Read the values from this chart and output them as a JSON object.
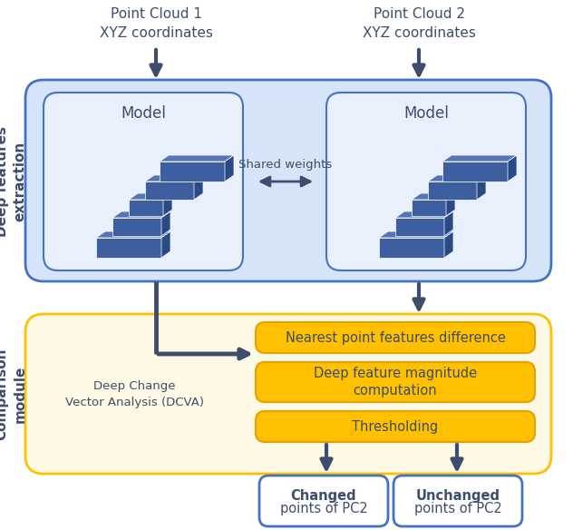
{
  "bg_color": "#ffffff",
  "top_label1": "Point Cloud 1\nXYZ coordinates",
  "top_label2": "Point Cloud 2\nXYZ coordinates",
  "blue_box_fill": "#d6e4f7",
  "blue_box_border": "#4472c4",
  "model_box_fill": "#e8f0fb",
  "model_box_border": "#4472c4",
  "yellow_box_fill": "#fef9e4",
  "yellow_box_border": "#ffc000",
  "orange_btn_fill": "#ffc000",
  "orange_btn_border": "#e6a000",
  "output_box_fill": "#ffffff",
  "output_box_border": "#4472c4",
  "arrow_color": "#3d4d6b",
  "text_color": "#3d4d6b",
  "shared_weights_text": "Shared weights",
  "deep_feat_label": "Deep features\nextraction",
  "comparison_label": "Comparison\nmodule",
  "dcva_label": "Deep Change\nVector Analysis (DCVA)",
  "btn1": "Nearest point features difference",
  "btn2": "Deep feature magnitude\ncomputation",
  "btn3": "Thresholding",
  "out1_line1": "Changed",
  "out1_line2": "points of PC2",
  "out2_line1": "Unchanged",
  "out2_line2": "points of PC2",
  "model_label": "Model",
  "model_color_front": "#3d5fa0",
  "model_color_top": "#5575b8",
  "model_color_side": "#2a4a85"
}
